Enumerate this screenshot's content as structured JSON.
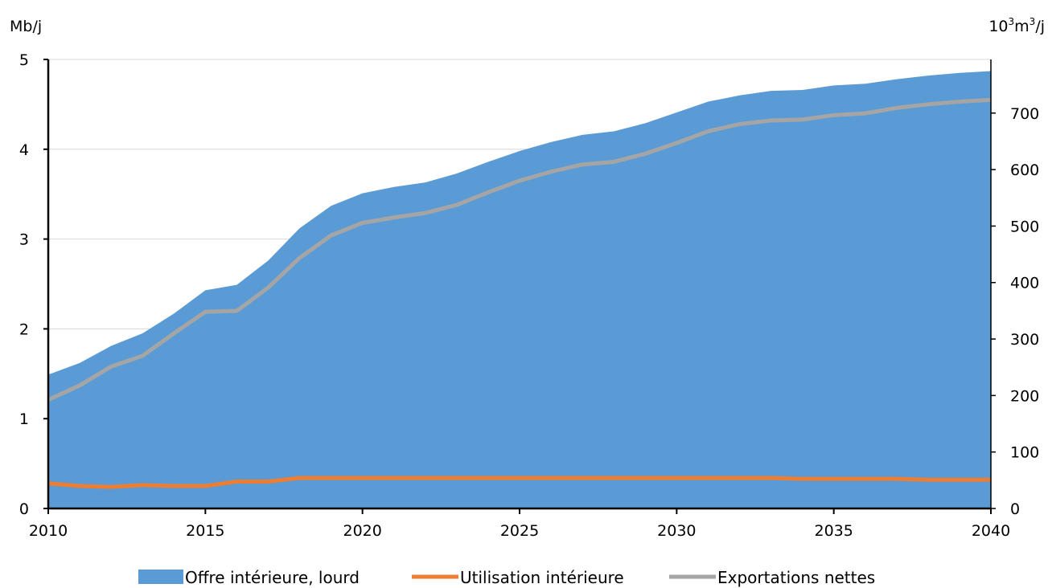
{
  "chart_data": {
    "type": "area",
    "left_unit": "Mb/j",
    "right_unit_base": "10",
    "right_unit_sup1": "3",
    "right_unit_mid": "m",
    "right_unit_sup2": "3",
    "right_unit_end": "/j",
    "x": [
      2010,
      2011,
      2012,
      2013,
      2014,
      2015,
      2016,
      2017,
      2018,
      2019,
      2020,
      2021,
      2022,
      2023,
      2024,
      2025,
      2026,
      2027,
      2028,
      2029,
      2030,
      2031,
      2032,
      2033,
      2034,
      2035,
      2036,
      2037,
      2038,
      2039,
      2040
    ],
    "xlim": [
      2010,
      2040
    ],
    "x_ticks": [
      2010,
      2015,
      2020,
      2025,
      2030,
      2035,
      2040
    ],
    "ylim": [
      0,
      5
    ],
    "y_ticks": [
      0,
      1,
      2,
      3,
      4,
      5
    ],
    "y2lim": [
      0,
      795
    ],
    "y2_ticks": [
      0,
      100,
      200,
      300,
      400,
      500,
      600,
      700
    ],
    "grid": true,
    "legend_position": "bottom",
    "series": [
      {
        "name": "Offre intérieure, lourd",
        "kind": "area",
        "color": "#5b9bd5",
        "values": [
          1.49,
          1.62,
          1.81,
          1.95,
          2.17,
          2.43,
          2.49,
          2.76,
          3.12,
          3.37,
          3.51,
          3.58,
          3.63,
          3.73,
          3.86,
          3.98,
          4.08,
          4.16,
          4.2,
          4.29,
          4.41,
          4.53,
          4.6,
          4.65,
          4.66,
          4.71,
          4.73,
          4.78,
          4.82,
          4.85,
          4.87
        ]
      },
      {
        "name": "Utilisation intérieure",
        "kind": "line",
        "color": "#ed7d31",
        "values": [
          0.28,
          0.25,
          0.24,
          0.26,
          0.25,
          0.25,
          0.3,
          0.3,
          0.34,
          0.34,
          0.34,
          0.34,
          0.34,
          0.34,
          0.34,
          0.34,
          0.34,
          0.34,
          0.34,
          0.34,
          0.34,
          0.34,
          0.34,
          0.34,
          0.33,
          0.33,
          0.33,
          0.33,
          0.32,
          0.32,
          0.32
        ]
      },
      {
        "name": "Exportations nettes",
        "kind": "line",
        "color": "#a5a5a5",
        "values": [
          1.21,
          1.37,
          1.58,
          1.7,
          1.95,
          2.19,
          2.2,
          2.46,
          2.79,
          3.04,
          3.18,
          3.24,
          3.29,
          3.38,
          3.52,
          3.65,
          3.75,
          3.83,
          3.86,
          3.95,
          4.07,
          4.2,
          4.28,
          4.32,
          4.33,
          4.38,
          4.4,
          4.46,
          4.5,
          4.53,
          4.55
        ]
      }
    ]
  }
}
